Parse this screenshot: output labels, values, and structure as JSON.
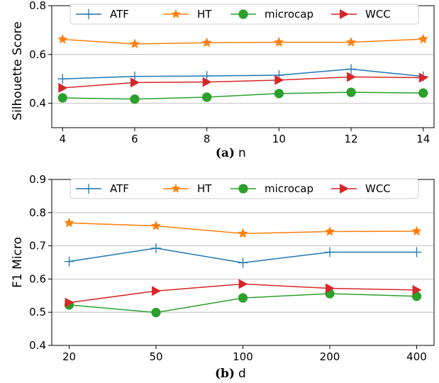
{
  "chart_data": [
    {
      "type": "line",
      "caption_tag": "(a)",
      "xlabel": "n",
      "ylabel": "Silhouette Score",
      "x": [
        4,
        6,
        8,
        10,
        12,
        14
      ],
      "x_tick_labels": [
        "4",
        "6",
        "8",
        "10",
        "12",
        "14"
      ],
      "xlim": [
        3.7,
        14.3
      ],
      "ylim": [
        0.3,
        0.8
      ],
      "y_ticks": [
        0.4,
        0.6,
        0.8
      ],
      "y_tick_labels": [
        "0.4",
        "0.6",
        "0.8"
      ],
      "grid": "horizontal",
      "legend_position": "top",
      "series": [
        {
          "name": "ATF",
          "color": "#1f77b4",
          "marker": "plus",
          "values": [
            0.5,
            0.51,
            0.512,
            0.515,
            0.54,
            0.51
          ]
        },
        {
          "name": "HT",
          "color": "#ff7f0e",
          "marker": "star",
          "values": [
            0.662,
            0.643,
            0.648,
            0.65,
            0.65,
            0.663
          ]
        },
        {
          "name": "microcap",
          "color": "#2ca02c",
          "marker": "circle",
          "values": [
            0.422,
            0.417,
            0.425,
            0.44,
            0.445,
            0.442
          ]
        },
        {
          "name": "WCC",
          "color": "#d62728",
          "marker": "triangle-right",
          "values": [
            0.463,
            0.485,
            0.487,
            0.495,
            0.508,
            0.505
          ]
        }
      ]
    },
    {
      "type": "line",
      "caption_tag": "(b)",
      "xlabel": "d",
      "ylabel": "F1 Micro",
      "x": [
        20,
        50,
        100,
        200,
        400
      ],
      "x_tick_labels": [
        "20",
        "50",
        "100",
        "200",
        "400"
      ],
      "xlim": [
        -0.2,
        4.2
      ],
      "ylim": [
        0.4,
        0.9
      ],
      "y_ticks": [
        0.4,
        0.5,
        0.6,
        0.7,
        0.8,
        0.9
      ],
      "y_tick_labels": [
        "0.4",
        "0.5",
        "0.6",
        "0.7",
        "0.8",
        "0.9"
      ],
      "grid": "horizontal",
      "legend_position": "top",
      "series": [
        {
          "name": "ATF",
          "color": "#1f77b4",
          "marker": "plus",
          "values": [
            0.653,
            0.693,
            0.649,
            0.681,
            0.681
          ]
        },
        {
          "name": "HT",
          "color": "#ff7f0e",
          "marker": "star",
          "values": [
            0.769,
            0.76,
            0.737,
            0.743,
            0.744
          ]
        },
        {
          "name": "microcap",
          "color": "#2ca02c",
          "marker": "circle",
          "values": [
            0.522,
            0.499,
            0.543,
            0.556,
            0.548
          ]
        },
        {
          "name": "WCC",
          "color": "#d62728",
          "marker": "triangle-right",
          "values": [
            0.529,
            0.564,
            0.585,
            0.572,
            0.567
          ]
        }
      ]
    }
  ]
}
